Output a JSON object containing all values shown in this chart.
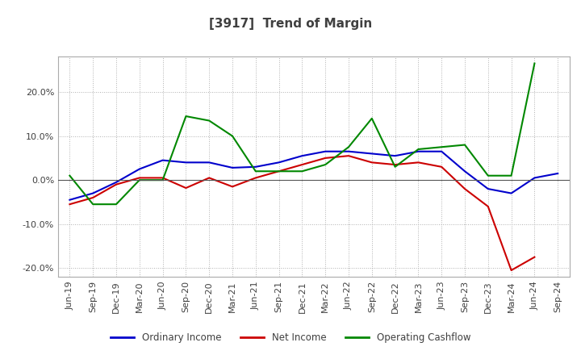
{
  "title": "[3917]  Trend of Margin",
  "title_color": "#404040",
  "background_color": "#ffffff",
  "plot_bg_color": "#ffffff",
  "grid_color": "#b0b0b0",
  "x_labels": [
    "Jun-19",
    "Sep-19",
    "Dec-19",
    "Mar-20",
    "Jun-20",
    "Sep-20",
    "Dec-20",
    "Mar-21",
    "Jun-21",
    "Sep-21",
    "Dec-21",
    "Mar-22",
    "Jun-22",
    "Sep-22",
    "Dec-22",
    "Mar-23",
    "Jun-23",
    "Sep-23",
    "Dec-23",
    "Mar-24",
    "Jun-24",
    "Sep-24"
  ],
  "ordinary_income": [
    -0.045,
    -0.03,
    -0.005,
    0.025,
    0.045,
    0.04,
    0.04,
    0.028,
    0.03,
    0.04,
    0.055,
    0.065,
    0.065,
    0.06,
    0.055,
    0.065,
    0.065,
    0.02,
    -0.02,
    -0.03,
    0.005,
    0.015
  ],
  "net_income": [
    -0.055,
    -0.04,
    -0.01,
    0.005,
    0.005,
    -0.018,
    0.005,
    -0.015,
    0.005,
    0.02,
    0.035,
    0.05,
    0.055,
    0.04,
    0.035,
    0.04,
    0.03,
    -0.02,
    -0.06,
    -0.205,
    -0.175,
    null
  ],
  "operating_cashflow": [
    0.01,
    -0.055,
    -0.055,
    0.0,
    0.0,
    0.145,
    0.135,
    0.1,
    0.02,
    0.02,
    0.02,
    0.035,
    0.075,
    0.14,
    0.03,
    0.07,
    0.075,
    0.08,
    0.01,
    0.01,
    0.265,
    null
  ],
  "ylim": [
    -0.22,
    0.28
  ],
  "yticks": [
    -0.2,
    -0.1,
    0.0,
    0.1,
    0.2
  ],
  "line_colors": {
    "ordinary_income": "#0000cc",
    "net_income": "#cc0000",
    "operating_cashflow": "#008800"
  },
  "legend_labels": [
    "Ordinary Income",
    "Net Income",
    "Operating Cashflow"
  ],
  "legend_colors": [
    "#0000cc",
    "#cc0000",
    "#008800"
  ],
  "title_fontsize": 11,
  "tick_fontsize": 8,
  "legend_fontsize": 8.5
}
